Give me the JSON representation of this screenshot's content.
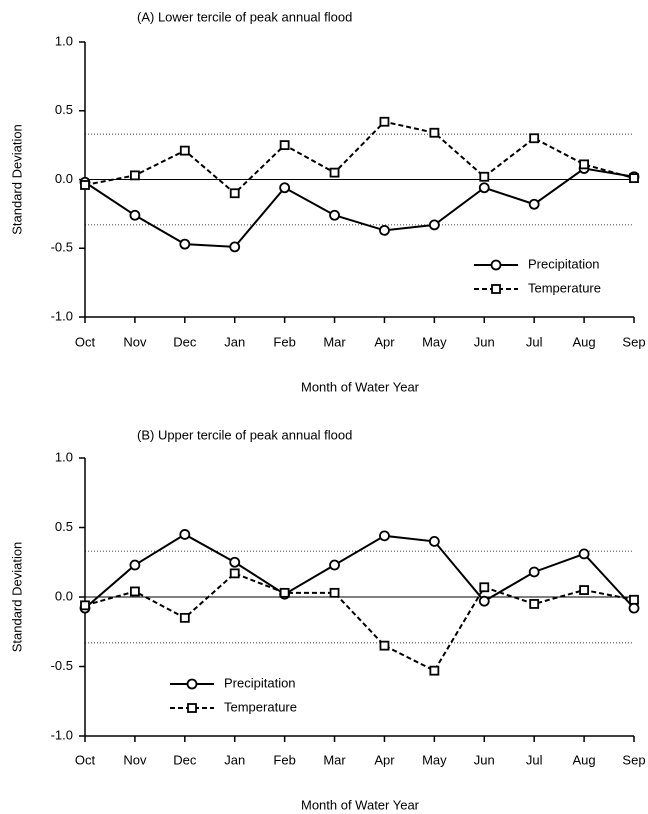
{
  "chart_data": [
    {
      "type": "line",
      "title": "(A) Lower tercile of peak annual flood",
      "xlabel": "Month of Water Year",
      "ylabel": "Standard Deviation",
      "categories": [
        "Oct",
        "Nov",
        "Dec",
        "Jan",
        "Feb",
        "Mar",
        "Apr",
        "May",
        "Jun",
        "Jul",
        "Aug",
        "Sep"
      ],
      "series": [
        {
          "name": "Precipitation",
          "color": "#000000",
          "dash": "solid",
          "marker": "circle",
          "values": [
            -0.02,
            -0.26,
            -0.47,
            -0.49,
            -0.06,
            -0.26,
            -0.37,
            -0.33,
            -0.06,
            -0.18,
            0.08,
            0.02
          ]
        },
        {
          "name": "Temperature",
          "color": "#000000",
          "dash": "dashed",
          "marker": "square",
          "values": [
            -0.04,
            0.03,
            0.21,
            -0.1,
            0.25,
            0.05,
            0.42,
            0.34,
            0.02,
            0.3,
            0.11,
            0.01
          ]
        }
      ],
      "ylim": [
        -1,
        1
      ],
      "yticks": [
        {
          "value": -1,
          "label": "-1.0"
        },
        -0.5,
        {
          "value": 0,
          "label": "0.0"
        },
        0.5,
        {
          "value": 1,
          "label": "1.0"
        }
      ],
      "reference_lines": [
        0.33,
        -0.33
      ],
      "legend": "lower right",
      "grid": false
    },
    {
      "type": "line",
      "title": "(B) Upper tercile of peak annual flood",
      "xlabel": "Month of Water Year",
      "ylabel": "Standard Deviation",
      "categories": [
        "Oct",
        "Nov",
        "Dec",
        "Jan",
        "Feb",
        "Mar",
        "Apr",
        "May",
        "Jun",
        "Jul",
        "Aug",
        "Sep"
      ],
      "series": [
        {
          "name": "Precipitation",
          "color": "#000000",
          "dash": "solid",
          "marker": "circle",
          "values": [
            -0.08,
            0.23,
            0.45,
            0.25,
            0.02,
            0.23,
            0.44,
            0.4,
            -0.03,
            0.18,
            0.31,
            -0.08
          ]
        },
        {
          "name": "Temperature",
          "color": "#000000",
          "dash": "dashed",
          "marker": "square",
          "values": [
            -0.06,
            0.04,
            -0.15,
            0.17,
            0.03,
            0.03,
            -0.35,
            -0.53,
            0.07,
            -0.05,
            0.05,
            -0.02
          ]
        }
      ],
      "ylim": [
        -1,
        1
      ],
      "yticks": [
        {
          "value": -1,
          "label": "-1.0"
        },
        -0.5,
        {
          "value": 0,
          "label": "0.0"
        },
        0.5,
        {
          "value": 1,
          "label": "1.0"
        }
      ],
      "reference_lines": [
        0.33,
        -0.33
      ],
      "legend": "lower left",
      "grid": false
    }
  ]
}
